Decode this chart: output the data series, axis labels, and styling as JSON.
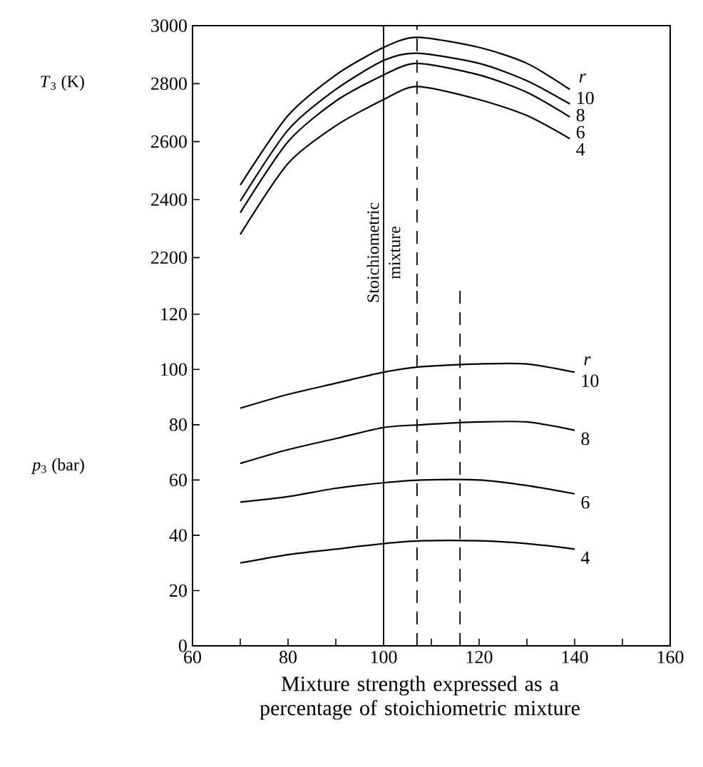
{
  "chart_data": [
    {
      "type": "line",
      "ylabel": "*T*$_{3}$ (K)",
      "legend_title": "r",
      "xlim": [
        60,
        160
      ],
      "ylim": [
        2100,
        3000
      ],
      "yticks": [
        2200,
        2400,
        2600,
        2800,
        3000
      ],
      "tick_labels": "y",
      "x": [
        70,
        80,
        90,
        100,
        107,
        120,
        130,
        139
      ],
      "series": [
        {
          "name": "10",
          "color": "#000000",
          "values": [
            2450,
            2690,
            2830,
            2925,
            2960,
            2925,
            2870,
            2780
          ]
        },
        {
          "name": "8",
          "color": "#000000",
          "values": [
            2395,
            2640,
            2780,
            2880,
            2905,
            2870,
            2810,
            2730
          ]
        },
        {
          "name": "6",
          "color": "#000000",
          "values": [
            2355,
            2600,
            2740,
            2830,
            2870,
            2830,
            2770,
            2685
          ]
        },
        {
          "name": "4",
          "color": "#000000",
          "values": [
            2280,
            2525,
            2655,
            2745,
            2790,
            2745,
            2690,
            2610
          ]
        }
      ],
      "ref_lines": [
        {
          "axis": "x",
          "value": 100,
          "label": "Stoichiometric mixture"
        },
        {
          "axis": "x",
          "value": 107,
          "line_style": "dashed"
        }
      ]
    },
    {
      "type": "line",
      "ylabel": "*p*$_{3}$ (bar)",
      "legend_title": "r",
      "xlabel": "Mixture strength expressed as a percentage of stoichiometric mixture",
      "xlim": [
        60,
        160
      ],
      "xticks": [
        60,
        80,
        100,
        120,
        140,
        160
      ],
      "ylim": [
        0,
        130
      ],
      "yticks": [
        0,
        20,
        40,
        60,
        80,
        100,
        120
      ],
      "x": [
        70,
        80,
        90,
        100,
        108,
        120,
        130,
        140
      ],
      "series": [
        {
          "name": "10",
          "color": "#000000",
          "values": [
            86,
            91,
            95,
            99,
            101,
            102,
            102,
            99
          ]
        },
        {
          "name": "8",
          "color": "#000000",
          "values": [
            66,
            71,
            75,
            79,
            80,
            81,
            81,
            78
          ]
        },
        {
          "name": "6",
          "color": "#000000",
          "values": [
            52,
            54,
            57,
            59,
            60,
            60,
            58,
            55
          ]
        },
        {
          "name": "4",
          "color": "#000000",
          "values": [
            30,
            33,
            35,
            37,
            38,
            38,
            37,
            35
          ]
        }
      ],
      "ref_lines": [
        {
          "axis": "x",
          "value": 100
        },
        {
          "axis": "x",
          "value": 107,
          "line_style": "dashed"
        },
        {
          "axis": "x",
          "value": 116,
          "line_style": "dashed"
        }
      ]
    }
  ]
}
